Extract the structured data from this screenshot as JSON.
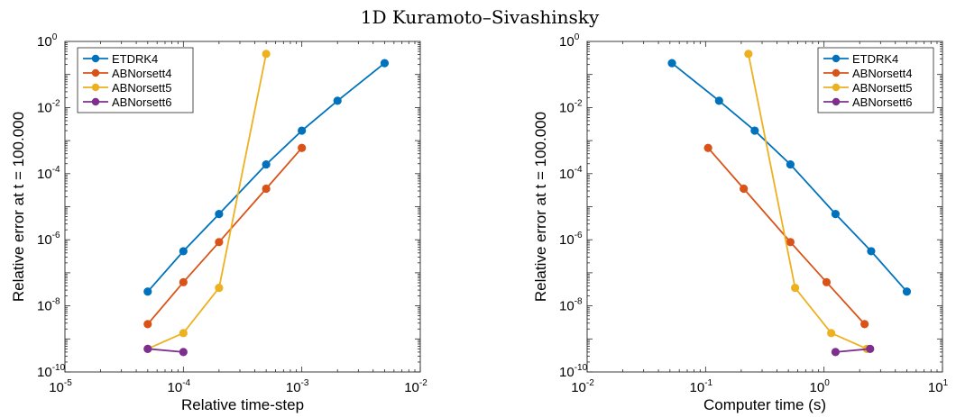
{
  "figure": {
    "title": "1D Kuramoto–Sivashinsky"
  },
  "colors": {
    "ETDRK4": "#0072BD",
    "ABNorsett4": "#D95319",
    "ABNorsett5": "#EDB120",
    "ABNorsett6": "#7E2F8E"
  },
  "chart_data": [
    {
      "type": "line",
      "xlabel": "Relative time-step",
      "ylabel": "Relative error at t = 100.000",
      "xscale": "log",
      "yscale": "log",
      "xlim": [
        1e-05,
        0.01
      ],
      "ylim": [
        1e-10,
        1
      ],
      "xticks": [
        {
          "base": "10",
          "exp": "-5"
        },
        {
          "base": "10",
          "exp": "-4"
        },
        {
          "base": "10",
          "exp": "-3"
        },
        {
          "base": "10",
          "exp": "-2"
        }
      ],
      "yticks": [
        {
          "base": "10",
          "exp": "-10"
        },
        {
          "base": "10",
          "exp": "-8"
        },
        {
          "base": "10",
          "exp": "-6"
        },
        {
          "base": "10",
          "exp": "-4"
        },
        {
          "base": "10",
          "exp": "-2"
        },
        {
          "base": "10",
          "exp": "0"
        }
      ],
      "legend": "top-left",
      "grid": false,
      "series": [
        {
          "name": "ETDRK4",
          "x": [
            5e-05,
            0.0001,
            0.0002,
            0.0005,
            0.001,
            0.002,
            0.005
          ],
          "y": [
            2.7e-08,
            4.5e-07,
            6e-06,
            0.00019,
            0.002,
            0.016,
            0.22
          ]
        },
        {
          "name": "ABNorsett4",
          "x": [
            5e-05,
            0.0001,
            0.0002,
            0.0005,
            0.001
          ],
          "y": [
            2.8e-09,
            5.2e-08,
            8.5e-07,
            3.5e-05,
            0.0006
          ]
        },
        {
          "name": "ABNorsett5",
          "x": [
            5e-05,
            0.0001,
            0.0002,
            0.0005
          ],
          "y": [
            5e-10,
            1.5e-09,
            3.5e-08,
            0.42
          ]
        },
        {
          "name": "ABNorsett6",
          "x": [
            5e-05,
            0.0001
          ],
          "y": [
            5e-10,
            4e-10
          ]
        }
      ]
    },
    {
      "type": "line",
      "xlabel": "Computer time (s)",
      "ylabel": "Relative error at t = 100.000",
      "xscale": "log",
      "yscale": "log",
      "xlim": [
        0.01,
        10
      ],
      "ylim": [
        1e-10,
        1
      ],
      "xticks": [
        {
          "base": "10",
          "exp": "-2"
        },
        {
          "base": "10",
          "exp": "-1"
        },
        {
          "base": "10",
          "exp": "0"
        },
        {
          "base": "10",
          "exp": "1"
        }
      ],
      "yticks": [
        {
          "base": "10",
          "exp": "-10"
        },
        {
          "base": "10",
          "exp": "-8"
        },
        {
          "base": "10",
          "exp": "-6"
        },
        {
          "base": "10",
          "exp": "-4"
        },
        {
          "base": "10",
          "exp": "-2"
        },
        {
          "base": "10",
          "exp": "0"
        }
      ],
      "legend": "top-right",
      "grid": false,
      "series": [
        {
          "name": "ETDRK4",
          "x": [
            0.052,
            0.13,
            0.26,
            0.52,
            1.25,
            2.5,
            5.0
          ],
          "y": [
            0.22,
            0.016,
            0.002,
            0.00019,
            6e-06,
            4.5e-07,
            2.7e-08
          ]
        },
        {
          "name": "ABNorsett4",
          "x": [
            0.105,
            0.21,
            0.52,
            1.05,
            2.2
          ],
          "y": [
            0.0006,
            3.5e-05,
            8.5e-07,
            5.2e-08,
            2.8e-09
          ]
        },
        {
          "name": "ABNorsett5",
          "x": [
            0.23,
            0.57,
            1.15,
            2.3
          ],
          "y": [
            0.42,
            3.5e-08,
            1.5e-09,
            5e-10
          ]
        },
        {
          "name": "ABNorsett6",
          "x": [
            1.25,
            2.45
          ],
          "y": [
            4e-10,
            5e-10
          ]
        }
      ]
    }
  ]
}
